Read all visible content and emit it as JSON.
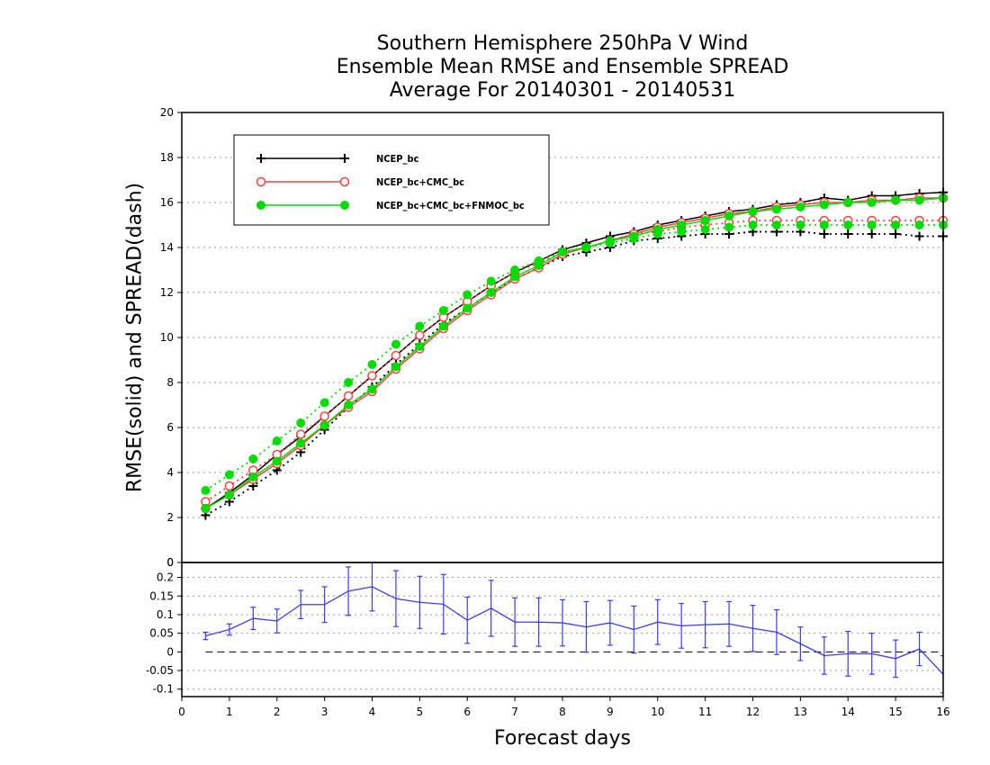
{
  "chart_data": [
    {
      "type": "line",
      "title": [
        "Southern Hemisphere 250hPa V Wind",
        "Ensemble Mean RMSE and Ensemble SPREAD",
        "Average For 20140301 - 20140531"
      ],
      "xlabel": "Forecast days",
      "ylabel": "RMSE(solid) and SPREAD(dash)",
      "xlim": [
        0,
        16
      ],
      "ylim": [
        0,
        20
      ],
      "x_ticks": [
        "0",
        "1",
        "2",
        "3",
        "4",
        "5",
        "6",
        "7",
        "8",
        "9",
        "10",
        "11",
        "12",
        "13",
        "14",
        "15",
        "16"
      ],
      "y_ticks": [
        "0",
        "2",
        "4",
        "6",
        "8",
        "10",
        "12",
        "14",
        "16",
        "18",
        "20"
      ],
      "grid": "horizontal dotted",
      "legend_position": "top-left",
      "x": [
        0.5,
        1,
        1.5,
        2,
        2.5,
        3,
        3.5,
        4,
        4.5,
        5,
        5.5,
        6,
        6.5,
        7,
        7.5,
        8,
        8.5,
        9,
        9.5,
        10,
        10.5,
        11,
        11.5,
        12,
        12.5,
        13,
        13.5,
        14,
        14.5,
        15,
        15.5,
        16
      ],
      "series": [
        {
          "name": "NCEP_bc",
          "color": "#000000",
          "marker": "plus",
          "rmse": [
            2.4,
            3.1,
            3.9,
            4.8,
            5.6,
            6.5,
            7.4,
            8.3,
            9.2,
            10.1,
            10.9,
            11.6,
            12.3,
            12.9,
            13.4,
            13.9,
            14.2,
            14.5,
            14.7,
            15.0,
            15.2,
            15.4,
            15.6,
            15.7,
            15.9,
            16.0,
            16.2,
            16.1,
            16.3,
            16.3,
            16.4,
            16.45
          ],
          "spread": [
            2.1,
            2.7,
            3.4,
            4.1,
            4.9,
            5.9,
            6.9,
            7.8,
            8.8,
            9.7,
            10.6,
            11.3,
            12.0,
            12.6,
            13.1,
            13.6,
            13.8,
            14.0,
            14.3,
            14.4,
            14.5,
            14.6,
            14.6,
            14.7,
            14.7,
            14.7,
            14.6,
            14.6,
            14.6,
            14.6,
            14.5,
            14.5
          ]
        },
        {
          "name": "NCEP_bc+CMC_bc",
          "color": "#ff4040",
          "marker": "open-circle",
          "rmse": [
            2.4,
            3.0,
            3.7,
            4.4,
            5.2,
            6.1,
            6.9,
            7.6,
            8.6,
            9.5,
            10.4,
            11.2,
            11.9,
            12.6,
            13.1,
            13.7,
            14.0,
            14.3,
            14.6,
            14.9,
            15.1,
            15.3,
            15.5,
            15.6,
            15.8,
            15.9,
            16.0,
            16.0,
            16.1,
            16.1,
            16.2,
            16.2
          ],
          "spread": [
            2.7,
            3.4,
            4.1,
            4.8,
            5.7,
            6.5,
            7.4,
            8.3,
            9.2,
            10.1,
            10.9,
            11.6,
            12.3,
            12.9,
            13.3,
            13.8,
            14.0,
            14.3,
            14.6,
            14.7,
            14.9,
            15.0,
            15.1,
            15.2,
            15.2,
            15.2,
            15.2,
            15.2,
            15.2,
            15.2,
            15.2,
            15.2
          ]
        },
        {
          "name": "NCEP_bc+CMC_bc+FNMOC_bc",
          "color": "#00dd00",
          "marker": "filled-circle",
          "rmse": [
            2.4,
            3.0,
            3.8,
            4.5,
            5.3,
            6.1,
            7.0,
            7.7,
            8.7,
            9.6,
            10.5,
            11.3,
            12.0,
            12.7,
            13.2,
            13.8,
            14.0,
            14.3,
            14.5,
            14.8,
            15.0,
            15.2,
            15.4,
            15.6,
            15.7,
            15.8,
            15.9,
            16.0,
            16.0,
            16.1,
            16.1,
            16.2
          ],
          "spread": [
            3.2,
            3.9,
            4.6,
            5.4,
            6.2,
            7.1,
            8.0,
            8.8,
            9.7,
            10.5,
            11.2,
            11.9,
            12.5,
            13.0,
            13.4,
            13.8,
            14.0,
            14.2,
            14.4,
            14.6,
            14.7,
            14.8,
            14.9,
            15.0,
            15.0,
            15.0,
            15.0,
            15.0,
            15.0,
            15.0,
            15.0,
            15.0
          ]
        }
      ]
    },
    {
      "type": "line",
      "subtype": "errorbar",
      "xlim": [
        0,
        16
      ],
      "ylim": [
        -0.12,
        0.24
      ],
      "x_ticks": [
        "0",
        "1",
        "2",
        "3",
        "4",
        "5",
        "6",
        "7",
        "8",
        "9",
        "10",
        "11",
        "12",
        "13",
        "14",
        "15",
        "16"
      ],
      "y_ticks": [
        "-0.1",
        "-0.05",
        "0",
        "0.05",
        "0.1",
        "0.15",
        "0.2"
      ],
      "top_label": "0",
      "zero_line": "dashed",
      "color": "#3a3aff",
      "x": [
        0.5,
        1,
        1.5,
        2,
        2.5,
        3,
        3.5,
        4,
        4.5,
        5,
        5.5,
        6,
        6.5,
        7,
        7.5,
        8,
        8.5,
        9,
        9.5,
        10,
        10.5,
        11,
        11.5,
        12,
        12.5,
        13,
        13.5,
        14,
        14.5,
        15,
        15.5,
        16
      ],
      "values": [
        0.043,
        0.06,
        0.09,
        0.083,
        0.127,
        0.127,
        0.163,
        0.175,
        0.143,
        0.133,
        0.128,
        0.085,
        0.117,
        0.08,
        0.08,
        0.078,
        0.067,
        0.078,
        0.06,
        0.08,
        0.07,
        0.073,
        0.075,
        0.063,
        0.053,
        0.022,
        -0.01,
        -0.005,
        -0.005,
        -0.018,
        0.008,
        -0.06
      ],
      "errors": [
        0.01,
        0.015,
        0.03,
        0.032,
        0.038,
        0.048,
        0.065,
        0.065,
        0.075,
        0.07,
        0.08,
        0.062,
        0.075,
        0.065,
        0.065,
        0.062,
        0.068,
        0.06,
        0.063,
        0.06,
        0.06,
        0.062,
        0.06,
        0.062,
        0.06,
        0.045,
        0.05,
        0.06,
        0.055,
        0.05,
        0.045,
        0.05
      ]
    }
  ]
}
